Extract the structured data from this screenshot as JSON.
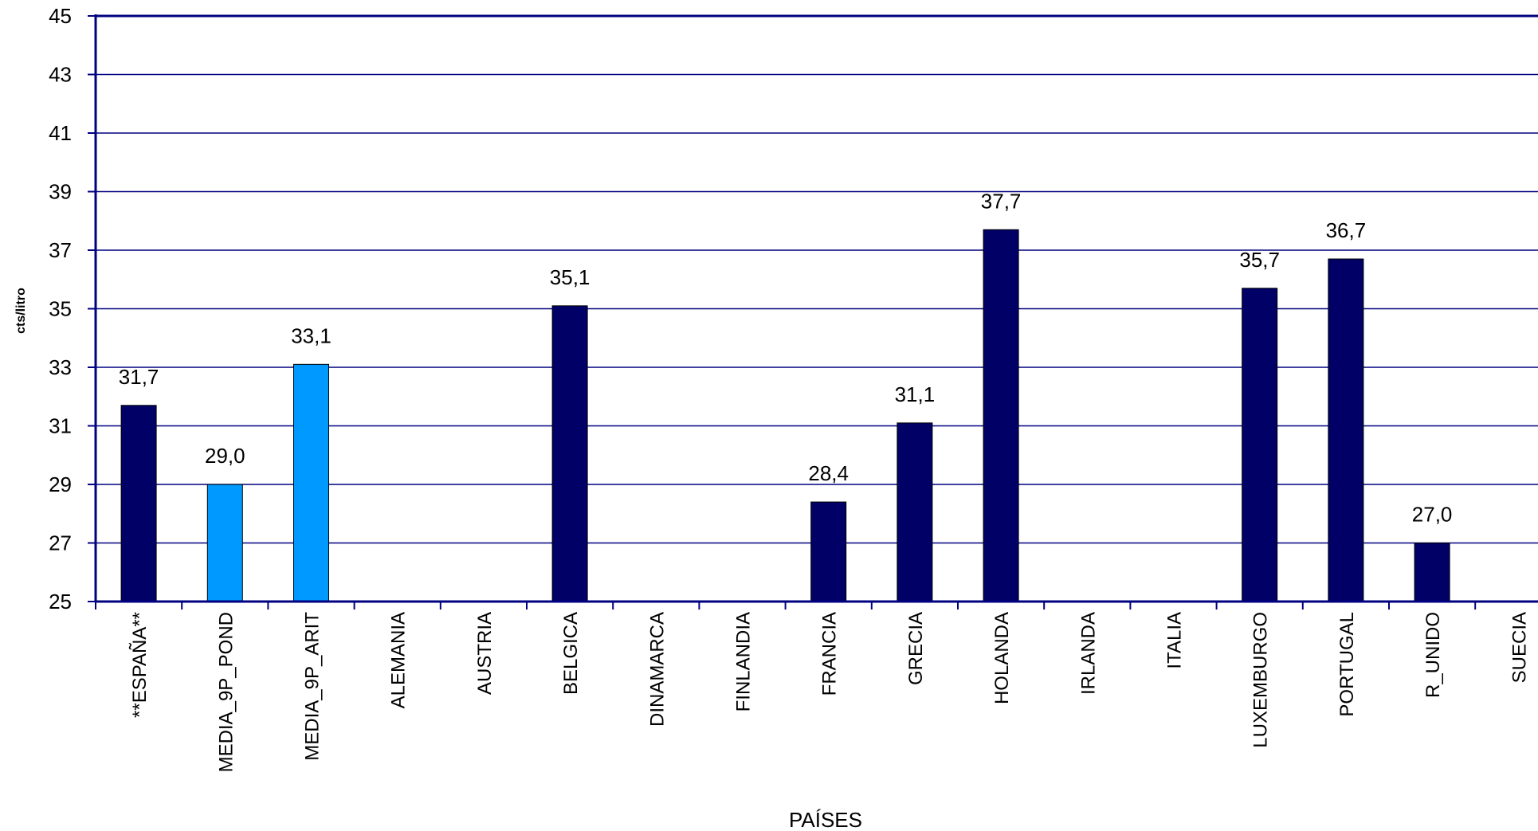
{
  "chart_data": {
    "type": "bar",
    "xlabel": "PAÍSES",
    "ylabel": "cts/litro",
    "ylim": [
      25,
      45
    ],
    "yticks": [
      25,
      27,
      29,
      31,
      33,
      35,
      37,
      39,
      41,
      43,
      45
    ],
    "grid": true,
    "legend": "none",
    "colors": {
      "main": "#000066",
      "average": "#0099ff",
      "grid": "#000080",
      "axis": "#000080"
    },
    "categories": [
      "**ESPAÑA**",
      "MEDIA_9P_POND",
      "MEDIA_9P_ARIT",
      "ALEMANIA",
      "AUSTRIA",
      "BELGICA",
      "DINAMARCA",
      "FINLANDIA",
      "FRANCIA",
      "GRECIA",
      "HOLANDA",
      "IRLANDA",
      "ITALIA",
      "LUXEMBURGO",
      "PORTUGAL",
      "R_UNIDO",
      "SUECIA"
    ],
    "values": [
      31.7,
      29.0,
      33.1,
      null,
      null,
      35.1,
      null,
      null,
      28.4,
      31.1,
      37.7,
      null,
      null,
      35.7,
      36.7,
      27.0,
      null
    ],
    "value_labels": [
      "31,7",
      "29,0",
      "33,1",
      "",
      "",
      "35,1",
      "",
      "",
      "28,4",
      "31,1",
      "37,7",
      "",
      "",
      "35,7",
      "36,7",
      "27,0",
      ""
    ],
    "bar_color_keys": [
      "main",
      "average",
      "average",
      "main",
      "main",
      "main",
      "main",
      "main",
      "main",
      "main",
      "main",
      "main",
      "main",
      "main",
      "main",
      "main",
      "main"
    ]
  }
}
